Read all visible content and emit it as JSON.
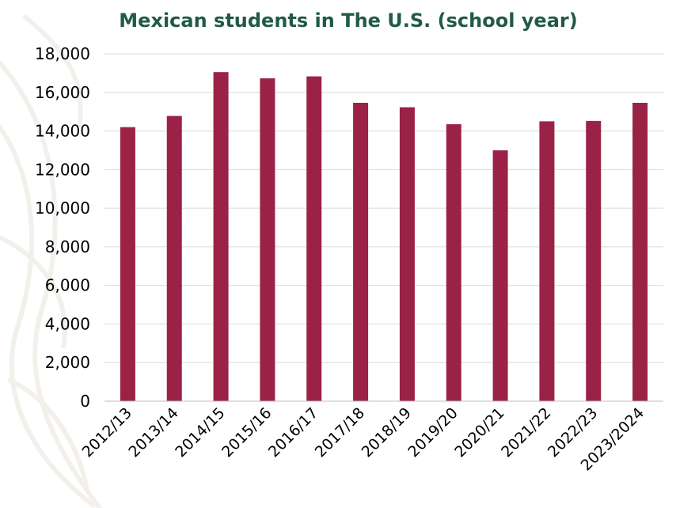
{
  "chart_data": {
    "type": "bar",
    "title": "Mexican students in The U.S. (school year)",
    "xlabel": "",
    "ylabel": "",
    "categories": [
      "2012/13",
      "2013/14",
      "2014/15",
      "2015/16",
      "2016/17",
      "2017/18",
      "2018/19",
      "2019/20",
      "2020/21",
      "2021/22",
      "2022/23",
      "2023/2024"
    ],
    "values": [
      14200,
      14780,
      17050,
      16730,
      16830,
      15460,
      15230,
      14350,
      13000,
      14500,
      14520,
      15460
    ],
    "ylim": [
      0,
      18000
    ],
    "yticks": [
      "0",
      "2,000",
      "4,000",
      "6,000",
      "8,000",
      "10,000",
      "12,000",
      "14,000",
      "16,000",
      "18,000"
    ],
    "ytick_values": [
      0,
      2000,
      4000,
      6000,
      8000,
      10000,
      12000,
      14000,
      16000,
      18000
    ],
    "grid": true,
    "legend": "none",
    "colors": {
      "bar": "#9b2247",
      "title": "#215a46",
      "grid": "#d9d9d9",
      "watermark": "#f3f0ec"
    }
  }
}
